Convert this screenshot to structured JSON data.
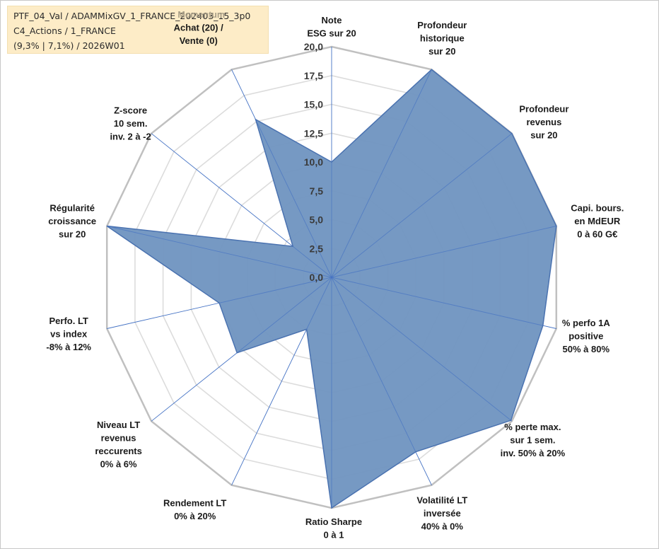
{
  "info_box": {
    "line1": "PTF_04_Val / ADAMMixGV_1_FRANCE_202403_15_3p0",
    "line2": "C4_Actions / 1_FRANCE",
    "line3": "(9,3% | 7,1%) / 2026W01"
  },
  "momentum_label": "Momentum",
  "colors": {
    "fill": "#6f93c0",
    "stroke": "#4a72b0",
    "spokes": "#4472c4",
    "ring_outer": "#c0c0c0",
    "ring_inner": "#dcdcdc",
    "info_bg": "#fdecc7"
  },
  "chart_data": {
    "type": "radar",
    "rmin": 0,
    "rmax": 20,
    "ticks": [
      "0,0",
      "2,5",
      "5,0",
      "7,5",
      "10,0",
      "12,5",
      "15,0",
      "17,5",
      "20,0"
    ],
    "axes": [
      [
        "Note",
        "ESG sur 20"
      ],
      [
        "Profondeur",
        "historique",
        "sur 20"
      ],
      [
        "Profondeur",
        "revenus",
        "sur 20"
      ],
      [
        "Capi. bours.",
        "en MdEUR",
        "0 à 60 G€"
      ],
      [
        "% perfo 1A",
        "positive",
        "50% à 80%"
      ],
      [
        "% perte max.",
        "sur 1 sem.",
        "inv. 50% à 20%"
      ],
      [
        "Volatilité LT",
        "inversée",
        "40% à 0%"
      ],
      [
        "Ratio Sharpe",
        "0 à 1"
      ],
      [
        "Rendement LT",
        "0% à 20%"
      ],
      [
        "Niveau LT",
        "revenus",
        "reccurents",
        "0% à 6%"
      ],
      [
        "Perfo. LT",
        "vs index",
        "-8% à 12%"
      ],
      [
        "Régularité",
        "croissance",
        "sur 20"
      ],
      [
        "Z-score",
        "10 sem.",
        "inv. 2 à -2"
      ],
      [
        "Achat (20) /",
        "Vente (0)"
      ]
    ],
    "values": [
      10,
      20,
      20,
      20,
      18.8,
      19.9,
      16.8,
      20,
      5,
      10.5,
      10,
      20,
      4.3,
      15.2
    ]
  }
}
